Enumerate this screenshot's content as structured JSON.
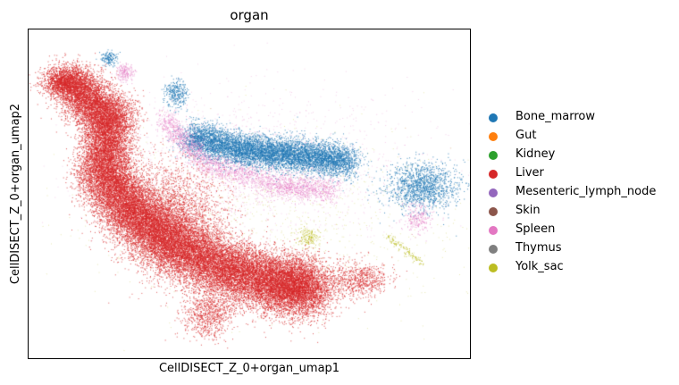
{
  "chart_data": {
    "type": "scatter",
    "title": "organ",
    "xlabel": "CellDISECT_Z_0+organ_umap1",
    "ylabel": "CellDISECT_Z_0+organ_umap2",
    "xticks": [],
    "yticks": [],
    "grid": false,
    "legend_position": "right",
    "series": [
      {
        "name": "Bone_marrow",
        "color": "#1f77b4"
      },
      {
        "name": "Gut",
        "color": "#ff7f0e"
      },
      {
        "name": "Kidney",
        "color": "#2ca02c"
      },
      {
        "name": "Liver",
        "color": "#d62728"
      },
      {
        "name": "Mesenteric_lymph_node",
        "color": "#9467bd"
      },
      {
        "name": "Skin",
        "color": "#8c564b"
      },
      {
        "name": "Spleen",
        "color": "#e377c2"
      },
      {
        "name": "Thymus",
        "color": "#7f7f7f"
      },
      {
        "name": "Yolk_sac",
        "color": "#bcbd22"
      }
    ]
  }
}
